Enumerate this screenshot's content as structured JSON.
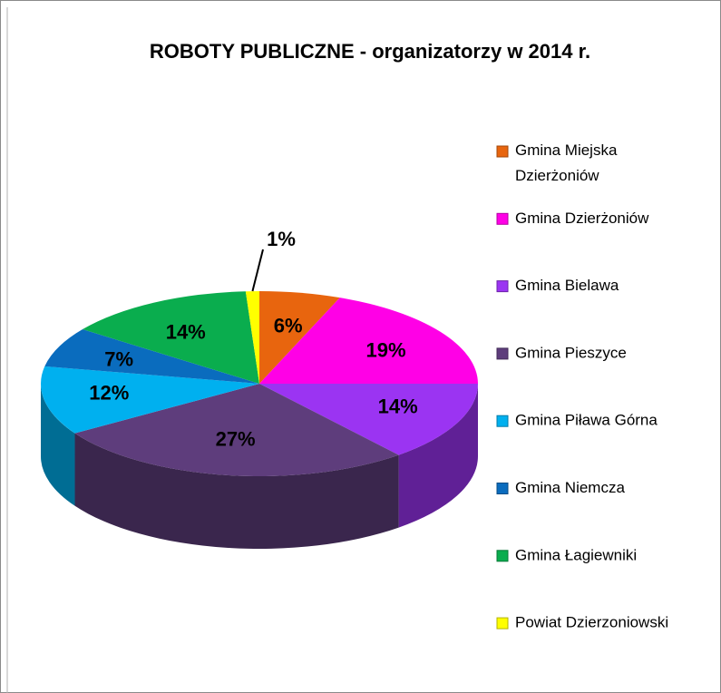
{
  "chart_data": {
    "type": "pie3d",
    "title": "ROBOTY PUBLICZNE - organizatorzy w 2014 r.",
    "categories": [
      "Gmina Miejska Dzierżoniów",
      "Gmina Dzierżoniów",
      "Gmina Bielawa",
      "Gmina Pieszyce",
      "Gmina Piława Górna",
      "Gmina Niemcza",
      "Gmina Łagiewniki",
      "Powiat Dzierzoniowski"
    ],
    "values": [
      6,
      19,
      14,
      27,
      12,
      7,
      14,
      1
    ],
    "value_labels": [
      "6%",
      "19%",
      "14%",
      "27%",
      "12%",
      "7%",
      "14%",
      "1%"
    ],
    "colors": [
      "#e8650e",
      "#ff00e6",
      "#9b34f2",
      "#5e3d7c",
      "#00b0ef",
      "#0a6cbe",
      "#0aad4e",
      "#ffff00"
    ],
    "legend": "right"
  }
}
